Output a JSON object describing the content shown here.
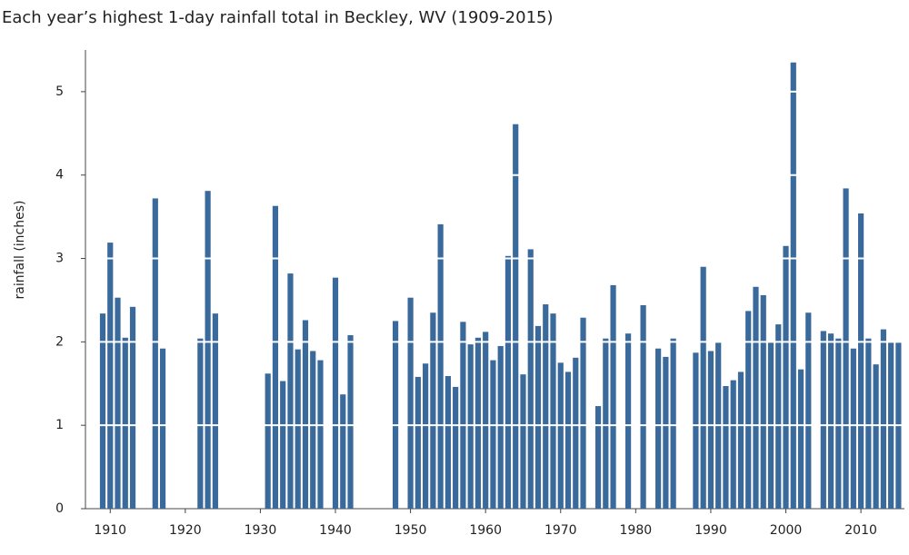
{
  "chart_data": {
    "type": "bar",
    "title": "Each year’s highest 1-day rainfall total in Beckley, WV (1909-2015)",
    "y_label": "rainfall (inches)",
    "color": "#3a6a9b",
    "x": [
      1909,
      1910,
      1911,
      1912,
      1913,
      1914,
      1915,
      1916,
      1917,
      1918,
      1919,
      1920,
      1921,
      1922,
      1923,
      1924,
      1925,
      1926,
      1927,
      1928,
      1929,
      1930,
      1931,
      1932,
      1933,
      1934,
      1935,
      1936,
      1937,
      1938,
      1939,
      1940,
      1941,
      1942,
      1943,
      1944,
      1945,
      1946,
      1947,
      1948,
      1949,
      1950,
      1951,
      1952,
      1953,
      1954,
      1955,
      1956,
      1957,
      1958,
      1959,
      1960,
      1961,
      1962,
      1963,
      1964,
      1965,
      1966,
      1967,
      1968,
      1969,
      1970,
      1971,
      1972,
      1973,
      1974,
      1975,
      1976,
      1977,
      1978,
      1979,
      1980,
      1981,
      1982,
      1983,
      1984,
      1985,
      1986,
      1987,
      1988,
      1989,
      1990,
      1991,
      1992,
      1993,
      1994,
      1995,
      1996,
      1997,
      1998,
      1999,
      2000,
      2001,
      2002,
      2003,
      2004,
      2005,
      2006,
      2007,
      2008,
      2009,
      2010,
      2011,
      2012,
      2013,
      2014,
      2015
    ],
    "values": [
      2.34,
      3.19,
      2.53,
      2.05,
      2.42,
      null,
      null,
      3.72,
      1.92,
      null,
      null,
      null,
      null,
      2.04,
      3.81,
      2.34,
      null,
      null,
      null,
      null,
      null,
      null,
      1.62,
      3.63,
      1.53,
      2.82,
      1.91,
      2.26,
      1.89,
      1.78,
      null,
      2.77,
      1.37,
      2.08,
      null,
      null,
      null,
      null,
      null,
      2.25,
      null,
      2.53,
      1.58,
      1.74,
      2.35,
      3.41,
      1.59,
      1.46,
      2.24,
      1.97,
      2.05,
      2.12,
      1.78,
      1.95,
      3.03,
      4.61,
      1.61,
      3.11,
      2.19,
      2.45,
      2.34,
      1.75,
      1.64,
      1.81,
      2.29,
      null,
      1.23,
      2.04,
      2.68,
      null,
      2.1,
      null,
      2.44,
      null,
      1.92,
      1.82,
      2.04,
      null,
      null,
      1.87,
      2.9,
      1.89,
      2.0,
      1.47,
      1.54,
      1.64,
      2.37,
      2.66,
      2.56,
      2.0,
      2.21,
      3.15,
      5.35,
      1.67,
      2.35,
      null,
      2.13,
      2.1,
      2.04,
      3.84,
      1.92,
      3.54,
      2.04,
      1.73,
      2.15,
      2.0,
      2.0
    ],
    "xlim": [
      1906.7,
      2015.8
    ],
    "xticks": [
      1910,
      1920,
      1930,
      1940,
      1950,
      1960,
      1970,
      1980,
      1990,
      2000,
      2010
    ],
    "ylim": [
      0,
      5.5
    ],
    "yticks": [
      0,
      1,
      2,
      3,
      4,
      5
    ],
    "grid": true
  }
}
